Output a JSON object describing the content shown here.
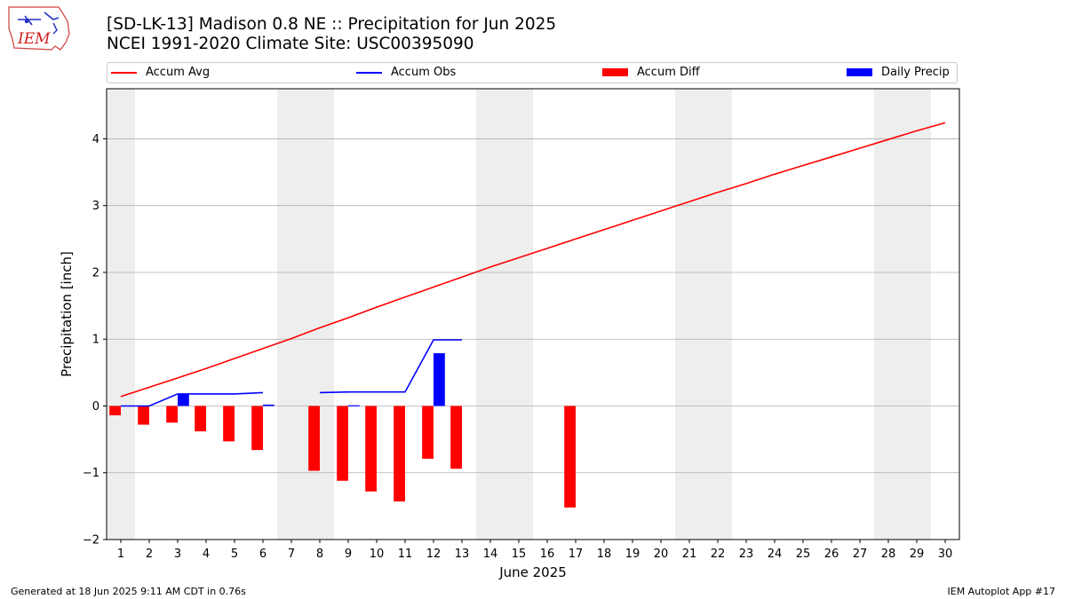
{
  "header": {
    "title_line1": "[SD-LK-13] Madison 0.8 NE :: Precipitation for Jun 2025",
    "title_line2": "NCEI 1991-2020 Climate Site: USC00395090",
    "logo_text": "IEM"
  },
  "footer": {
    "left": "Generated at 18 Jun 2025 9:11 AM CDT in 0.76s",
    "right": "IEM Autoplot App #17"
  },
  "colors": {
    "accum_avg": "#ff0000",
    "accum_obs": "#0000ff",
    "accum_diff": "#ff0000",
    "daily_precip": "#0000ff",
    "weekend_shade": "#eeeeee",
    "grid": "#b0b0b0"
  },
  "chart_data": {
    "type": "bar+line",
    "xlabel": "June 2025",
    "ylabel": "Precipitation [inch]",
    "xlim": [
      0.5,
      30.5
    ],
    "ylim": [
      -2.0,
      4.75
    ],
    "yticks": [
      -2,
      -1,
      0,
      1,
      2,
      3,
      4
    ],
    "ytick_labels": [
      "−2",
      "−1",
      "0",
      "1",
      "2",
      "3",
      "4"
    ],
    "xticks": [
      1,
      2,
      3,
      4,
      5,
      6,
      7,
      8,
      9,
      10,
      11,
      12,
      13,
      14,
      15,
      16,
      17,
      18,
      19,
      20,
      21,
      22,
      23,
      24,
      25,
      26,
      27,
      28,
      29,
      30
    ],
    "xtick_labels": [
      "1",
      "2",
      "3",
      "4",
      "5",
      "6",
      "7",
      "8",
      "9",
      "10",
      "11",
      "12",
      "13",
      "14",
      "15",
      "16",
      "17",
      "18",
      "19",
      "20",
      "21",
      "22",
      "23",
      "24",
      "25",
      "26",
      "27",
      "28",
      "29",
      "30"
    ],
    "grid": "horizontal",
    "legend_placement": "top, above plot",
    "weekend_shading": [
      [
        0.5,
        1.5
      ],
      [
        6.5,
        8.5
      ],
      [
        13.5,
        15.5
      ],
      [
        20.5,
        22.5
      ],
      [
        27.5,
        29.5
      ]
    ],
    "series": [
      {
        "name": "Accum Avg",
        "kind": "line",
        "x": [
          1,
          2,
          3,
          4,
          5,
          6,
          7,
          8,
          9,
          10,
          11,
          12,
          13,
          14,
          15,
          16,
          17,
          18,
          19,
          20,
          21,
          22,
          23,
          24,
          25,
          26,
          27,
          28,
          29,
          30
        ],
        "values": [
          0.14,
          0.28,
          0.42,
          0.56,
          0.71,
          0.86,
          1.01,
          1.17,
          1.32,
          1.48,
          1.63,
          1.78,
          1.93,
          2.08,
          2.22,
          2.36,
          2.5,
          2.64,
          2.78,
          2.92,
          3.06,
          3.2,
          3.33,
          3.47,
          3.6,
          3.73,
          3.86,
          3.99,
          4.12,
          4.24
        ]
      },
      {
        "name": "Accum Obs",
        "kind": "line",
        "x": [
          1,
          2,
          3,
          4,
          5,
          6,
          null,
          8,
          9,
          10,
          11,
          12,
          13
        ],
        "values": [
          0.0,
          0.0,
          0.18,
          0.18,
          0.18,
          0.2,
          null,
          0.2,
          0.21,
          0.21,
          0.21,
          0.99,
          0.99
        ]
      },
      {
        "name": "Accum Diff",
        "kind": "bar",
        "x": [
          1,
          2,
          3,
          4,
          5,
          6,
          8,
          9,
          10,
          11,
          12,
          13,
          17
        ],
        "values": [
          -0.14,
          -0.28,
          -0.25,
          -0.38,
          -0.53,
          -0.66,
          -0.97,
          -1.12,
          -1.28,
          -1.43,
          -0.79,
          -0.94,
          -1.52
        ]
      },
      {
        "name": "Daily Precip",
        "kind": "bar",
        "x": [
          3,
          6,
          9,
          12
        ],
        "values": [
          0.18,
          0.02,
          0.01,
          0.79
        ]
      }
    ]
  }
}
